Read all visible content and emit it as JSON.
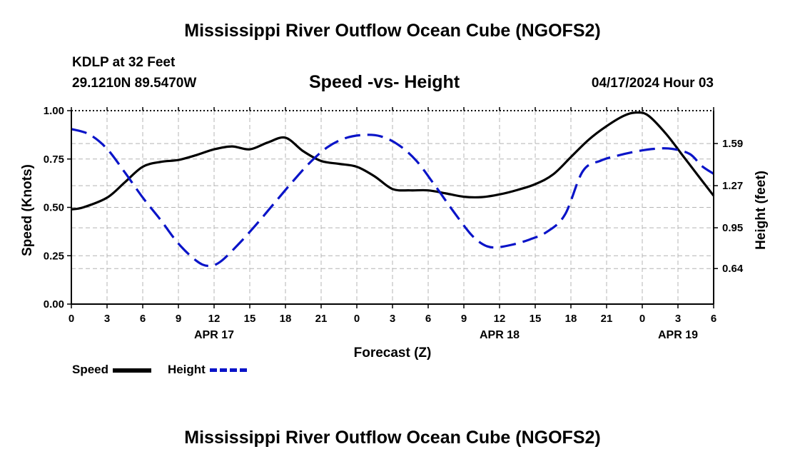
{
  "page": {
    "title": "Mississippi River Outflow Ocean Cube (NGOFS2)",
    "footer_title": "Mississippi River Outflow Ocean Cube (NGOFS2)",
    "station": "KDLP at 32 Feet",
    "coords": "29.1210N  89.5470W",
    "subtitle": "Speed -vs- Height",
    "timestamp": "04/17/2024 Hour 03"
  },
  "legend": {
    "speed_label": "Speed",
    "height_label": "Height"
  },
  "colors": {
    "speed": "#000000",
    "height": "#0a14c8",
    "grid": "#b4b4b4"
  },
  "chart_data": {
    "type": "line",
    "title": "Speed -vs- Height",
    "xlabel": "Forecast (Z)",
    "ylabel": "Speed (Knots)",
    "y2label": "Height (feet)",
    "xlim": [
      0,
      54
    ],
    "ylim": [
      0,
      1
    ],
    "y2lim": [
      0.37,
      1.84
    ],
    "x_tick_values": [
      0,
      3,
      6,
      9,
      12,
      15,
      18,
      21,
      24,
      27,
      30,
      33,
      36,
      39,
      42,
      45,
      48,
      51,
      54
    ],
    "x_tick_labels": [
      "0",
      "3",
      "6",
      "9",
      "12",
      "15",
      "18",
      "21",
      "0",
      "3",
      "6",
      "9",
      "12",
      "15",
      "18",
      "21",
      "0",
      "3",
      "6"
    ],
    "date_labels": [
      {
        "label": "APR 17",
        "x": 12
      },
      {
        "label": "APR 18",
        "x": 36
      },
      {
        "label": "APR 19",
        "x": 51
      }
    ],
    "y_ticks": [
      0.0,
      0.25,
      0.5,
      0.75,
      1.0
    ],
    "y_tick_labels": [
      "0.00",
      "0.25",
      "0.50",
      "0.75",
      "1.00"
    ],
    "y2_ticks": [
      0.64,
      0.95,
      1.27,
      1.59
    ],
    "y2_tick_labels": [
      "0.64",
      "0.95",
      "1.27",
      "1.59"
    ],
    "grid": true,
    "series": [
      {
        "name": "Speed",
        "axis": "left",
        "style": "solid",
        "x": [
          0,
          1,
          3,
          4.5,
          6,
          7.5,
          9,
          10.5,
          12,
          13.5,
          15,
          16.5,
          18,
          19.5,
          21,
          22.5,
          24,
          25.5,
          27,
          28.5,
          30,
          31.5,
          33,
          34.5,
          36,
          37.5,
          39,
          40.5,
          42,
          43.5,
          45,
          46.5,
          47.5,
          48.5,
          50,
          51.5,
          53,
          54
        ],
        "values": [
          0.49,
          0.5,
          0.55,
          0.63,
          0.71,
          0.735,
          0.745,
          0.77,
          0.8,
          0.815,
          0.8,
          0.835,
          0.86,
          0.79,
          0.74,
          0.725,
          0.71,
          0.66,
          0.595,
          0.588,
          0.588,
          0.572,
          0.555,
          0.553,
          0.567,
          0.59,
          0.62,
          0.67,
          0.76,
          0.85,
          0.92,
          0.975,
          0.99,
          0.975,
          0.88,
          0.76,
          0.64,
          0.56
        ]
      },
      {
        "name": "Height",
        "axis": "right",
        "style": "dashed",
        "x": [
          0,
          1.5,
          3,
          4.5,
          6,
          7.5,
          9,
          10.5,
          11.5,
          12.5,
          14,
          15.5,
          17,
          18.5,
          20,
          21.5,
          23,
          24.5,
          26,
          27.5,
          29,
          30.5,
          32,
          33.5,
          34.5,
          35.5,
          37,
          38.5,
          40,
          41.5,
          43,
          44.5,
          46,
          47.5,
          49,
          50.5,
          52,
          53,
          54
        ],
        "values": [
          1.7,
          1.66,
          1.55,
          1.37,
          1.18,
          1.01,
          0.83,
          0.7,
          0.66,
          0.69,
          0.82,
          0.97,
          1.13,
          1.29,
          1.44,
          1.56,
          1.63,
          1.655,
          1.645,
          1.58,
          1.46,
          1.28,
          1.09,
          0.91,
          0.83,
          0.8,
          0.82,
          0.86,
          0.92,
          1.05,
          1.38,
          1.46,
          1.5,
          1.53,
          1.55,
          1.55,
          1.51,
          1.42,
          1.36
        ]
      }
    ]
  }
}
